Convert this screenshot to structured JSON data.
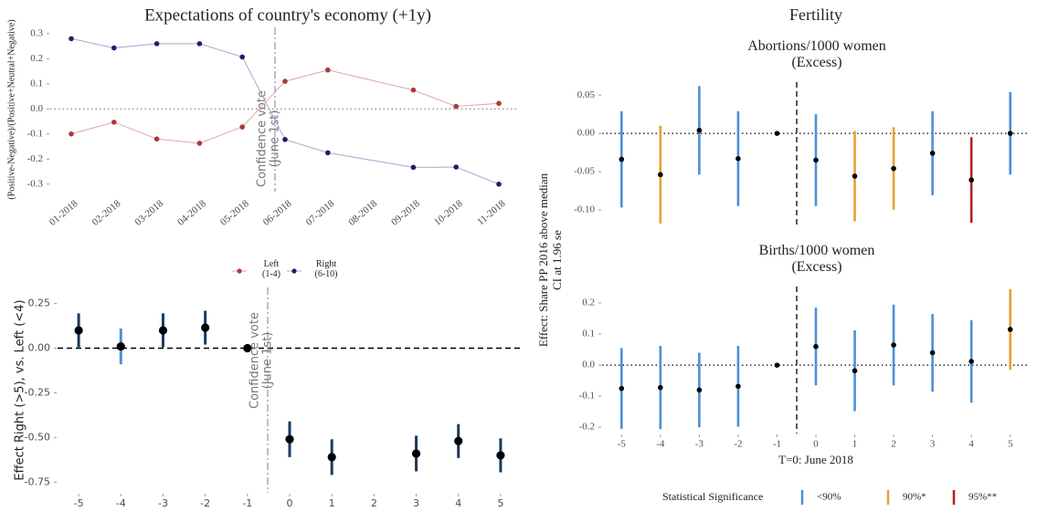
{
  "chart_data": [
    {
      "type": "line",
      "title": "Expectations of country's economy (+1y)",
      "ylabel": "(Positive-Negative)/(Positive+Neutral+Negative)",
      "categories": [
        "01-2018",
        "02-2018",
        "03-2018",
        "04-2018",
        "05-2018",
        "06-2018",
        "07-2018",
        "08-2018",
        "09-2018",
        "10-2018",
        "11-2018"
      ],
      "series": [
        {
          "name": "Left\n(1-4)",
          "color": "#a93a3a",
          "line_color": "#d9a7ae",
          "x": [
            "01-2018",
            "02-2018",
            "03-2018",
            "04-2018",
            "05-2018",
            "06-2018",
            "07-2018",
            "09-2018",
            "10-2018",
            "11-2018"
          ],
          "values": [
            -0.1,
            -0.053,
            -0.12,
            -0.137,
            -0.072,
            0.11,
            0.155,
            0.075,
            0.01,
            0.022
          ]
        },
        {
          "name": "Right\n(6-10)",
          "color": "#1a1f6e",
          "line_color": "#a9a9d2",
          "x": [
            "01-2018",
            "02-2018",
            "03-2018",
            "04-2018",
            "05-2018",
            "06-2018",
            "07-2018",
            "09-2018",
            "10-2018",
            "11-2018"
          ],
          "values": [
            0.28,
            0.243,
            0.26,
            0.26,
            0.207,
            -0.122,
            -0.175,
            -0.233,
            -0.232,
            -0.3
          ]
        }
      ],
      "ylim": [
        -0.33,
        0.325
      ],
      "yticks": [
        -0.3,
        -0.2,
        -0.1,
        {
          "value": 0,
          "label": "0.0"
        },
        0.1,
        0.2,
        0.3
      ],
      "annotation": [
        "Confidence vote",
        "(June 1st)"
      ]
    },
    {
      "type": "errorbar",
      "xlabel": "T=0: June 2018",
      "ylabel": "Effect Right (>5), vs. Left (<4)",
      "x": [
        -5,
        -4,
        -3,
        -2,
        -1,
        0,
        1,
        3,
        4,
        5
      ],
      "values": [
        0.1,
        0.01,
        0.1,
        0.115,
        0,
        -0.51,
        -0.61,
        -0.59,
        -0.52,
        -0.6
      ],
      "errors": [
        0.095,
        0.1,
        0.095,
        0.095,
        null,
        0.1,
        0.1,
        0.1,
        0.095,
        0.095
      ],
      "colors": [
        "#1b3a5c",
        "#4a90d9",
        "#1b3a5c",
        "#1b3a5c",
        "#1b3a5c",
        "#1b3a5c",
        "#1b3a5c",
        "#1b3a5c",
        "#1b3a5c",
        "#1b3a5c"
      ],
      "xlim": [
        -5.5,
        5.5
      ],
      "xticks": [
        -5,
        -4,
        -3,
        -2,
        -1,
        0,
        1,
        2,
        3,
        4,
        5
      ],
      "ylim": [
        -0.81,
        0.34
      ],
      "yticks": [
        -0.75,
        {
          "value": -0.5,
          "label": "-0.50"
        },
        -0.25,
        {
          "value": 0,
          "label": "0.00"
        },
        0.25
      ],
      "annotation": [
        "Confidence vote",
        "(June 1st)"
      ]
    },
    {
      "type": "errorbar",
      "title": "Fertility",
      "subtitle": "Abortions/1000 women\n(Excess)",
      "ylabel": [
        "Effect: Share PP 2016 above median",
        "CI at 1.96 se"
      ],
      "x": [
        -5,
        -4,
        -3,
        -2,
        -1,
        0,
        1,
        2,
        3,
        4,
        5
      ],
      "values": [
        -0.034,
        -0.054,
        0.004,
        -0.033,
        0,
        -0.035,
        -0.056,
        -0.046,
        -0.026,
        -0.061,
        0.0
      ],
      "errors": [
        0.063,
        0.064,
        0.058,
        0.062,
        null,
        0.06,
        0.059,
        0.054,
        0.055,
        0.056,
        0.054
      ],
      "colors": [
        "#4a90d9",
        "#e8a030",
        "#4a90d9",
        "#4a90d9",
        "#4a90d9",
        "#4a90d9",
        "#e8a030",
        "#e8a030",
        "#4a90d9",
        "#b22222",
        "#4a90d9"
      ],
      "xlim": [
        -5.5,
        5.5
      ],
      "ylim": [
        -0.124,
        0.067
      ],
      "yticks": [
        {
          "value": -0.1,
          "label": "-0.10"
        },
        -0.05,
        {
          "value": 0,
          "label": "0.00"
        },
        0.05
      ]
    },
    {
      "type": "errorbar",
      "subtitle": "Births/1000 women\n(Excess)",
      "xlabel": "T=0: June 2018",
      "x": [
        -5,
        -4,
        -3,
        -2,
        -1,
        0,
        1,
        2,
        3,
        4,
        5
      ],
      "values": [
        -0.075,
        -0.072,
        -0.08,
        -0.068,
        0,
        0.06,
        -0.018,
        0.065,
        0.04,
        0.012,
        0.115
      ],
      "errors": [
        0.13,
        0.134,
        0.12,
        0.13,
        null,
        0.125,
        0.13,
        0.13,
        0.125,
        0.133,
        0.13
      ],
      "colors": [
        "#4a90d9",
        "#4a90d9",
        "#4a90d9",
        "#4a90d9",
        "#4a90d9",
        "#4a90d9",
        "#4a90d9",
        "#4a90d9",
        "#4a90d9",
        "#4a90d9",
        "#e8a030"
      ],
      "xlim": [
        -5.5,
        5.5
      ],
      "xticks": [
        -5,
        -4,
        -3,
        -2,
        -1,
        0,
        1,
        2,
        3,
        4,
        5
      ],
      "ylim": [
        -0.22,
        0.253
      ],
      "yticks": [
        -0.2,
        -0.1,
        {
          "value": 0,
          "label": "0.0"
        },
        0.1,
        0.2
      ],
      "legend": {
        "title": "Statistical Significance",
        "items": [
          {
            "label": "<90%",
            "color": "#4a90d9"
          },
          {
            "label": "90%*",
            "color": "#e8a030"
          },
          {
            "label": "95%**",
            "color": "#b22222"
          }
        ]
      }
    }
  ]
}
